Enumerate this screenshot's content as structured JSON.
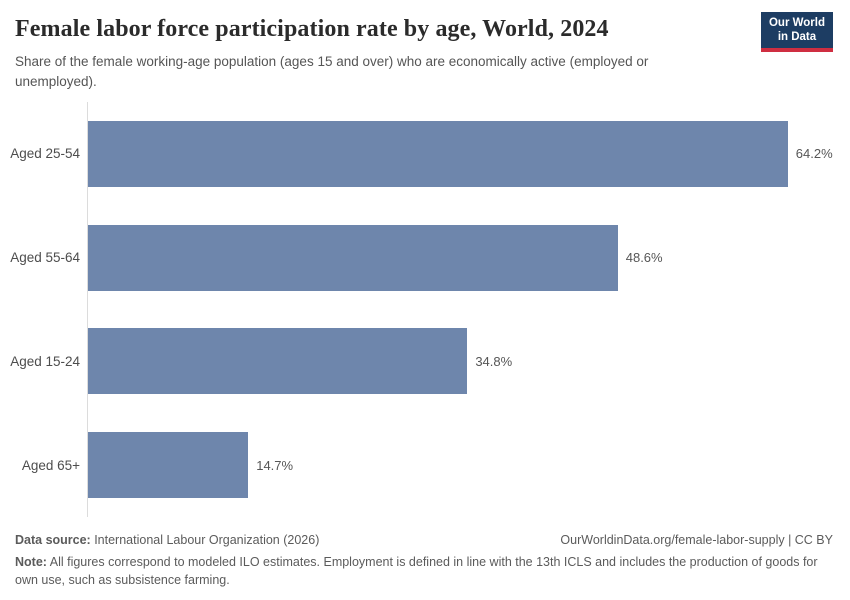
{
  "header": {
    "title": "Female labor force participation rate by age, World, 2024",
    "subtitle": "Share of the female working-age population (ages 15 and over) who are economically active (employed or unemployed).",
    "logo_line1": "Our World",
    "logo_line2": "in Data"
  },
  "chart_data": {
    "type": "bar",
    "orientation": "horizontal",
    "categories": [
      "Aged 25-54",
      "Aged 55-64",
      "Aged 15-24",
      "Aged 65+"
    ],
    "values": [
      64.2,
      48.6,
      34.8,
      14.7
    ],
    "value_labels": [
      "64.2%",
      "48.6%",
      "34.8%",
      "14.7%"
    ],
    "unit": "%",
    "title": "Female labor force participation rate by age, World, 2024",
    "xlabel": "",
    "ylabel": "",
    "xlim": [
      0,
      68
    ],
    "grid": false,
    "legend": "none",
    "bar_color": "#6e86ac",
    "axis_line_color": "#dcdcdc"
  },
  "footer": {
    "data_source_label": "Data source:",
    "data_source_text": " International Labour Organization (2026)",
    "attribution": "OurWorldinData.org/female-labor-supply | CC BY",
    "note_label": "Note:",
    "note_text": " All figures correspond to modeled ILO estimates. Employment is defined in line with the 13th ICLS and includes the production of goods for own use, such as subsistence farming."
  }
}
